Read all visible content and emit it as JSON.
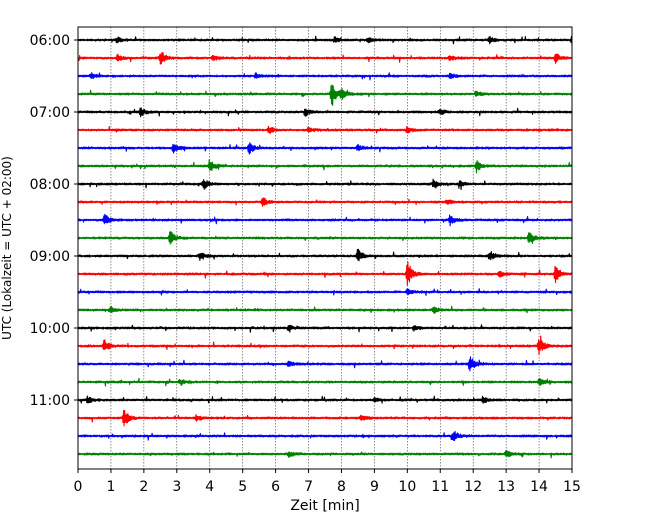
{
  "chart_data": {
    "type": "line",
    "title": "",
    "xlabel": "Zeit  [min]",
    "ylabel": "UTC (Lokalzeit = UTC + 02:00)",
    "xlim": [
      0,
      15
    ],
    "x_ticks": [
      "0",
      "1",
      "2",
      "3",
      "4",
      "5",
      "6",
      "7",
      "8",
      "9",
      "10",
      "11",
      "12",
      "13",
      "14",
      "15"
    ],
    "y_ticks": [
      "06:00",
      "07:00",
      "08:00",
      "09:00",
      "10:00",
      "11:00"
    ],
    "grid": "vertical dotted lines at each minute",
    "trace_interval_min": 15,
    "trace_start": "06:00",
    "colors_cycle": [
      "#000000",
      "#ff0000",
      "#0000ff",
      "#008000"
    ],
    "series": [
      {
        "start": "06:00",
        "color": "#000000",
        "events": [
          {
            "t": 1.2,
            "amp": 3
          },
          {
            "t": 7.8,
            "amp": 3
          },
          {
            "t": 8.8,
            "amp": 3
          },
          {
            "t": 12.5,
            "amp": 4
          },
          {
            "t": 15.0,
            "amp": 4
          }
        ]
      },
      {
        "start": "06:15",
        "color": "#ff0000",
        "events": [
          {
            "t": 1.2,
            "amp": 4
          },
          {
            "t": 2.5,
            "amp": 9
          },
          {
            "t": 4.1,
            "amp": 3
          },
          {
            "t": 11.3,
            "amp": 3
          },
          {
            "t": 14.5,
            "amp": 5
          }
        ]
      },
      {
        "start": "06:30",
        "color": "#0000ff",
        "events": [
          {
            "t": 0.4,
            "amp": 3
          },
          {
            "t": 5.4,
            "amp": 3
          },
          {
            "t": 11.3,
            "amp": 3
          }
        ]
      },
      {
        "start": "06:45",
        "color": "#008000",
        "events": [
          {
            "t": 7.7,
            "amp": 14
          },
          {
            "t": 8.0,
            "amp": 6
          },
          {
            "t": 12.1,
            "amp": 3
          }
        ]
      },
      {
        "start": "07:00",
        "color": "#000000",
        "events": [
          {
            "t": 1.9,
            "amp": 5
          },
          {
            "t": 6.9,
            "amp": 4
          },
          {
            "t": 11.0,
            "amp": 3
          }
        ]
      },
      {
        "start": "07:15",
        "color": "#ff0000",
        "events": [
          {
            "t": 5.8,
            "amp": 4
          },
          {
            "t": 7.0,
            "amp": 3
          },
          {
            "t": 10.0,
            "amp": 3
          }
        ]
      },
      {
        "start": "07:30",
        "color": "#0000ff",
        "events": [
          {
            "t": 2.9,
            "amp": 5
          },
          {
            "t": 5.2,
            "amp": 6
          },
          {
            "t": 8.5,
            "amp": 3
          }
        ]
      },
      {
        "start": "07:45",
        "color": "#008000",
        "events": [
          {
            "t": 4.0,
            "amp": 7
          },
          {
            "t": 12.1,
            "amp": 6
          }
        ]
      },
      {
        "start": "08:00",
        "color": "#000000",
        "events": [
          {
            "t": 3.8,
            "amp": 6
          },
          {
            "t": 10.8,
            "amp": 5
          },
          {
            "t": 11.6,
            "amp": 3
          }
        ]
      },
      {
        "start": "08:15",
        "color": "#ff0000",
        "events": [
          {
            "t": 5.6,
            "amp": 5
          },
          {
            "t": 11.2,
            "amp": 3
          }
        ]
      },
      {
        "start": "08:30",
        "color": "#0000ff",
        "events": [
          {
            "t": 0.8,
            "amp": 6
          },
          {
            "t": 11.3,
            "amp": 5
          }
        ]
      },
      {
        "start": "08:45",
        "color": "#008000",
        "events": [
          {
            "t": 2.8,
            "amp": 8
          },
          {
            "t": 13.7,
            "amp": 6
          }
        ]
      },
      {
        "start": "09:00",
        "color": "#000000",
        "events": [
          {
            "t": 3.7,
            "amp": 5
          },
          {
            "t": 8.5,
            "amp": 7
          },
          {
            "t": 12.5,
            "amp": 5
          }
        ]
      },
      {
        "start": "09:15",
        "color": "#ff0000",
        "events": [
          {
            "t": 10.0,
            "amp": 14
          },
          {
            "t": 14.5,
            "amp": 8
          },
          {
            "t": 12.8,
            "amp": 3
          }
        ]
      },
      {
        "start": "09:30",
        "color": "#0000ff",
        "events": [
          {
            "t": 10.0,
            "amp": 3
          }
        ]
      },
      {
        "start": "09:45",
        "color": "#008000",
        "events": [
          {
            "t": 1.0,
            "amp": 3
          },
          {
            "t": 10.8,
            "amp": 3
          }
        ]
      },
      {
        "start": "10:00",
        "color": "#000000",
        "events": [
          {
            "t": 6.4,
            "amp": 3
          },
          {
            "t": 10.2,
            "amp": 3
          }
        ]
      },
      {
        "start": "10:15",
        "color": "#ff0000",
        "events": [
          {
            "t": 0.8,
            "amp": 6
          },
          {
            "t": 14.0,
            "amp": 10
          }
        ]
      },
      {
        "start": "10:30",
        "color": "#0000ff",
        "events": [
          {
            "t": 11.9,
            "amp": 8
          },
          {
            "t": 6.4,
            "amp": 3
          }
        ]
      },
      {
        "start": "10:45",
        "color": "#008000",
        "events": [
          {
            "t": 3.1,
            "amp": 3
          },
          {
            "t": 14.0,
            "amp": 4
          }
        ]
      },
      {
        "start": "11:00",
        "color": "#000000",
        "events": [
          {
            "t": 0.3,
            "amp": 4
          },
          {
            "t": 9.0,
            "amp": 3
          },
          {
            "t": 12.3,
            "amp": 3
          }
        ]
      },
      {
        "start": "11:15",
        "color": "#ff0000",
        "events": [
          {
            "t": 1.4,
            "amp": 9
          },
          {
            "t": 3.6,
            "amp": 3
          },
          {
            "t": 8.6,
            "amp": 3
          }
        ]
      },
      {
        "start": "11:30",
        "color": "#0000ff",
        "events": [
          {
            "t": 11.4,
            "amp": 6
          }
        ]
      },
      {
        "start": "11:45",
        "color": "#008000",
        "events": [
          {
            "t": 6.4,
            "amp": 3
          },
          {
            "t": 13.0,
            "amp": 4
          }
        ]
      }
    ]
  }
}
